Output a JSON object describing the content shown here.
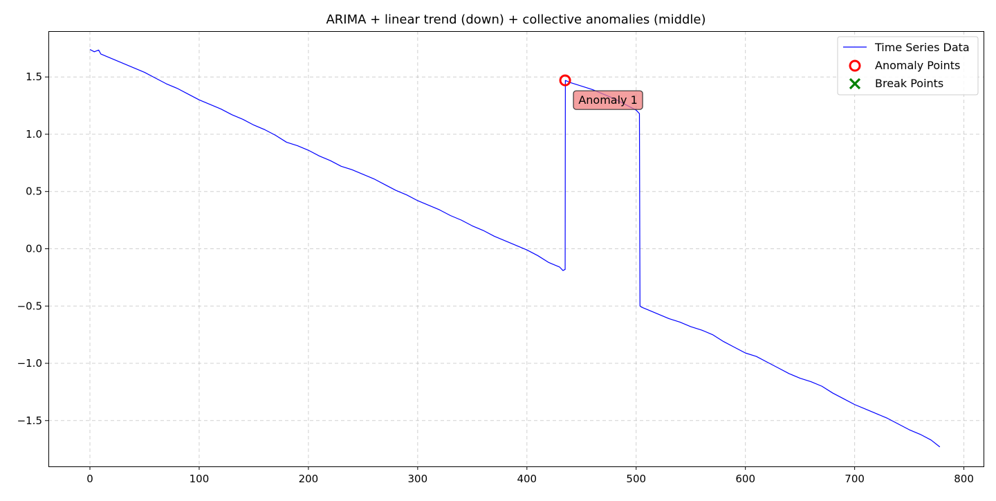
{
  "chart_data": {
    "type": "line",
    "title": "ARIMA + linear trend (down) + collective anomalies (middle)",
    "xlabel": "",
    "ylabel": "",
    "xlim": [
      -38,
      818
    ],
    "ylim": [
      -1.9,
      1.9
    ],
    "x_ticks": [
      0,
      100,
      200,
      300,
      400,
      500,
      600,
      700,
      800
    ],
    "x_tick_labels": [
      "0",
      "100",
      "200",
      "300",
      "400",
      "500",
      "600",
      "700",
      "800"
    ],
    "y_ticks": [
      -1.5,
      -1.0,
      -0.5,
      0.0,
      0.5,
      1.0,
      1.5
    ],
    "y_tick_labels": [
      "−1.5",
      "−1.0",
      "−0.5",
      "0.0",
      "0.5",
      "1.0",
      "1.5"
    ],
    "grid": true,
    "legend_position": "top-right",
    "series": [
      {
        "name": "Time Series Data",
        "color": "#0000ff",
        "points": [
          [
            0,
            1.74
          ],
          [
            4,
            1.72
          ],
          [
            8,
            1.735
          ],
          [
            10,
            1.7
          ],
          [
            20,
            1.66
          ],
          [
            30,
            1.62
          ],
          [
            40,
            1.58
          ],
          [
            50,
            1.54
          ],
          [
            60,
            1.49
          ],
          [
            70,
            1.44
          ],
          [
            80,
            1.4
          ],
          [
            90,
            1.35
          ],
          [
            100,
            1.3
          ],
          [
            110,
            1.26
          ],
          [
            120,
            1.22
          ],
          [
            130,
            1.17
          ],
          [
            140,
            1.13
          ],
          [
            150,
            1.08
          ],
          [
            160,
            1.04
          ],
          [
            170,
            0.99
          ],
          [
            180,
            0.93
          ],
          [
            190,
            0.9
          ],
          [
            200,
            0.86
          ],
          [
            210,
            0.81
          ],
          [
            220,
            0.77
          ],
          [
            230,
            0.72
          ],
          [
            240,
            0.69
          ],
          [
            250,
            0.65
          ],
          [
            260,
            0.61
          ],
          [
            270,
            0.56
          ],
          [
            280,
            0.51
          ],
          [
            290,
            0.47
          ],
          [
            300,
            0.42
          ],
          [
            310,
            0.38
          ],
          [
            320,
            0.34
          ],
          [
            330,
            0.29
          ],
          [
            340,
            0.25
          ],
          [
            350,
            0.2
          ],
          [
            360,
            0.16
          ],
          [
            370,
            0.11
          ],
          [
            380,
            0.07
          ],
          [
            390,
            0.03
          ],
          [
            400,
            -0.01
          ],
          [
            410,
            -0.06
          ],
          [
            420,
            -0.12
          ],
          [
            430,
            -0.16
          ],
          [
            433,
            -0.19
          ],
          [
            435,
            -0.18
          ],
          [
            435.2,
            1.47
          ],
          [
            440,
            1.45
          ],
          [
            450,
            1.42
          ],
          [
            460,
            1.39
          ],
          [
            470,
            1.35
          ],
          [
            480,
            1.31
          ],
          [
            490,
            1.26
          ],
          [
            500,
            1.21
          ],
          [
            503,
            1.18
          ],
          [
            503.5,
            -0.5
          ],
          [
            505,
            -0.51
          ],
          [
            510,
            -0.53
          ],
          [
            520,
            -0.57
          ],
          [
            530,
            -0.61
          ],
          [
            540,
            -0.64
          ],
          [
            550,
            -0.68
          ],
          [
            560,
            -0.71
          ],
          [
            570,
            -0.75
          ],
          [
            580,
            -0.81
          ],
          [
            590,
            -0.86
          ],
          [
            600,
            -0.91
          ],
          [
            610,
            -0.94
          ],
          [
            620,
            -0.99
          ],
          [
            630,
            -1.04
          ],
          [
            640,
            -1.09
          ],
          [
            650,
            -1.13
          ],
          [
            660,
            -1.16
          ],
          [
            670,
            -1.2
          ],
          [
            680,
            -1.26
          ],
          [
            690,
            -1.31
          ],
          [
            700,
            -1.36
          ],
          [
            710,
            -1.4
          ],
          [
            720,
            -1.44
          ],
          [
            730,
            -1.48
          ],
          [
            740,
            -1.53
          ],
          [
            750,
            -1.58
          ],
          [
            760,
            -1.62
          ],
          [
            770,
            -1.67
          ],
          [
            778,
            -1.73
          ]
        ]
      }
    ],
    "anomaly_points": {
      "name": "Anomaly Points",
      "color": "#ff0000",
      "marker": "hollow-circle",
      "points": [
        [
          435,
          1.47
        ]
      ]
    },
    "break_points": {
      "name": "Break Points",
      "color": "#008000",
      "marker": "x",
      "points": []
    },
    "annotations": [
      {
        "text": "Anomaly 1",
        "x": 435,
        "y": 1.47,
        "background": "#f08080"
      }
    ]
  }
}
